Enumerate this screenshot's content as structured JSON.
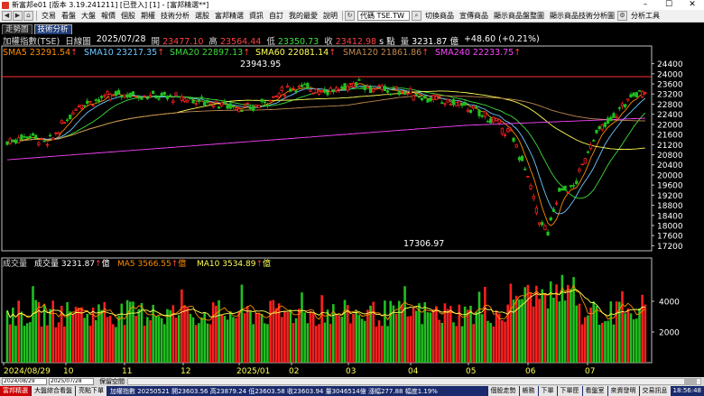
{
  "window": {
    "title": "新富邦e01 [版本 3.19.241211] [已登入] [1] - [富邦精選**]",
    "min": "–",
    "max": "☐",
    "close": "✕"
  },
  "menu": {
    "items": [
      "交易",
      "看盤",
      "大盤",
      "報價",
      "個股",
      "期權",
      "技術分析",
      "選股",
      "富邦精選",
      "資訊",
      "自訂",
      "我的最愛",
      "說明"
    ],
    "code_value": "代碼 TSE.TW",
    "right_items": [
      "切換商品",
      "宣傳商品",
      "顯示商品盤整圖",
      "顯示商品技術分析圖",
      "分析工具"
    ]
  },
  "tabs": [
    {
      "label": "走勢圖",
      "active": false
    },
    {
      "label": "技術分析",
      "active": true
    }
  ],
  "info": {
    "name": "加權指數(TSE)",
    "period": "日線圖",
    "date": "2025/07/28",
    "open_label": "開",
    "open": "23477.10",
    "high_label": "高",
    "high": "23564.44",
    "low_label": "低",
    "low": "23350.73",
    "close_label": "收",
    "close": "23412.98",
    "close_unit": "s 點",
    "vol_label": "量",
    "vol": "3231.87 億",
    "change": "+48.60 (+0.21%)"
  },
  "sma": [
    {
      "label": "SMA5",
      "value": "23291.54",
      "color": "#ff8c00"
    },
    {
      "label": "SMA10",
      "value": "23217.35",
      "color": "#6ec6ff"
    },
    {
      "label": "SMA20",
      "value": "22897.13",
      "color": "#3ddc3d"
    },
    {
      "label": "SMA60",
      "value": "22081.14",
      "color": "#ffff55"
    },
    {
      "label": "SMA120",
      "value": "21861.86",
      "color": "#c08850"
    },
    {
      "label": "SMA240",
      "value": "22233.75",
      "color": "#ff44ff"
    }
  ],
  "arrow": "↑",
  "annotations": {
    "high": "23943.95",
    "low": "17306.97"
  },
  "price_axis": [
    "24400",
    "24000",
    "23600",
    "23200",
    "22800",
    "22400",
    "22000",
    "21600",
    "21200",
    "20800",
    "20400",
    "20000",
    "19600",
    "19200",
    "18800",
    "18400",
    "18000",
    "17600",
    "17200"
  ],
  "volume": {
    "label": "成交量",
    "vol_label": "成交量",
    "vol_value": "3231.87",
    "vol_unit": "億",
    "ma5_label": "MA5",
    "ma5_value": "3566.55",
    "ma5_unit": "億",
    "ma10_label": "MA10",
    "ma10_value": "3534.89",
    "ma10_unit": "億",
    "axis": [
      "4000",
      "2000"
    ]
  },
  "x_axis": [
    "2024/08/29",
    "10",
    "11",
    "12",
    "2025/01",
    "02",
    "03",
    "04",
    "05",
    "06",
    "07"
  ],
  "bottom": {
    "date_from": "2024/08/29",
    "date_to": "2025/07/28",
    "grid_label": "保留空間"
  },
  "status": {
    "left": "富邦精選",
    "indices": "大盤綜合看盤",
    "mode": "亮點下單",
    "ticker": "加權指數 20250521 開23603.56 高23879.24 低23603.58 收23603.94 量3046514億 漲幅277.88 幅度1.19%",
    "right_items": [
      "個股走勢",
      "帳務",
      "下單",
      "下單匣",
      "看盤室",
      "來資發明",
      "交易訊息"
    ],
    "time": "18:56:48"
  },
  "colors": {
    "up": "#ff2020",
    "down": "#20c020",
    "grid": "#3a3a3a",
    "frame": "#c0c0c0"
  }
}
